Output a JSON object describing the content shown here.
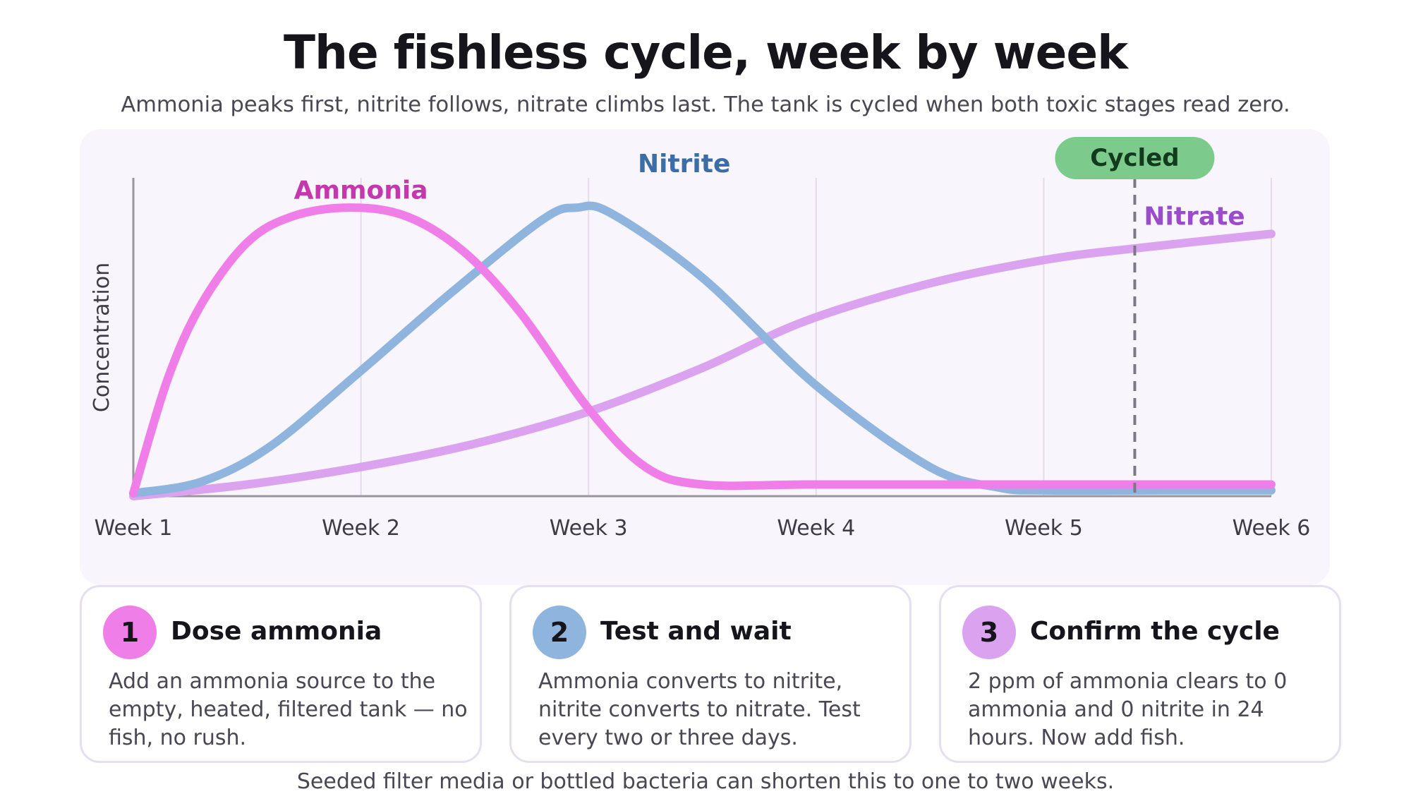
{
  "title": "The fishless cycle, week by week",
  "subtitle": "Ammonia peaks first, nitrite follows, nitrate climbs last. The tank is cycled when both toxic stages read zero.",
  "chart_data": {
    "type": "line",
    "title": "",
    "xlabel": "",
    "ylabel": "Concentration",
    "categories": [
      "Week 1",
      "Week 2",
      "Week 3",
      "Week 4",
      "Week 5",
      "Week 6"
    ],
    "xlim": [
      1,
      6
    ],
    "ylim": [
      0,
      1
    ],
    "grid": true,
    "legend": "direct-labels",
    "series": [
      {
        "name": "Ammonia",
        "color": "#f07ee8",
        "label_color": "#c537ad",
        "x": [
          1,
          1.15,
          1.3,
          1.5,
          1.7,
          1.95,
          2.2,
          2.45,
          2.7,
          3.0,
          3.25,
          3.5,
          4.0,
          5.0,
          6.0
        ],
        "y": [
          0.01,
          0.4,
          0.66,
          0.87,
          0.96,
          0.99,
          0.96,
          0.84,
          0.63,
          0.3,
          0.1,
          0.04,
          0.04,
          0.04,
          0.04
        ]
      },
      {
        "name": "Nitrite",
        "color": "#8fb5de",
        "label_color": "#3d6da6",
        "x": [
          1,
          1.3,
          1.6,
          2.0,
          2.4,
          2.8,
          2.95,
          3.1,
          3.5,
          4.0,
          4.5,
          4.8,
          5.0,
          5.5,
          6.0
        ],
        "y": [
          0.01,
          0.05,
          0.17,
          0.43,
          0.7,
          0.95,
          0.99,
          0.97,
          0.75,
          0.38,
          0.1,
          0.03,
          0.02,
          0.02,
          0.02
        ]
      },
      {
        "name": "Nitrate",
        "color": "#dba3ef",
        "label_color": "#9a4ccd",
        "x": [
          1,
          1.5,
          2,
          2.5,
          3,
          3.5,
          3.95,
          4.5,
          5,
          5.4,
          6
        ],
        "y": [
          0,
          0.04,
          0.1,
          0.18,
          0.29,
          0.44,
          0.6,
          0.73,
          0.81,
          0.85,
          0.9
        ]
      }
    ],
    "annotations": [
      {
        "text": "Cycled",
        "x": 5.4,
        "style": "dashed-vertical",
        "badge_color": "#7ccb8c"
      }
    ]
  },
  "cards": [
    {
      "number": "1",
      "title": "Dose ammonia",
      "body": "Add an ammonia source to the empty, heated, filtered tank — no fish, no rush.",
      "color": "#f07ee8"
    },
    {
      "number": "2",
      "title": "Test and wait",
      "body": "Ammonia converts to nitrite, nitrite converts to nitrate. Test every two or three days.",
      "color": "#8fb5de"
    },
    {
      "number": "3",
      "title": "Confirm the cycle",
      "body": "2 ppm of ammonia clears to 0 ammonia and 0 nitrite in 24 hours. Now add fish.",
      "color": "#dba3ef"
    }
  ],
  "footnote": "Seeded filter media or bottled bacteria can shorten this to one to two weeks."
}
